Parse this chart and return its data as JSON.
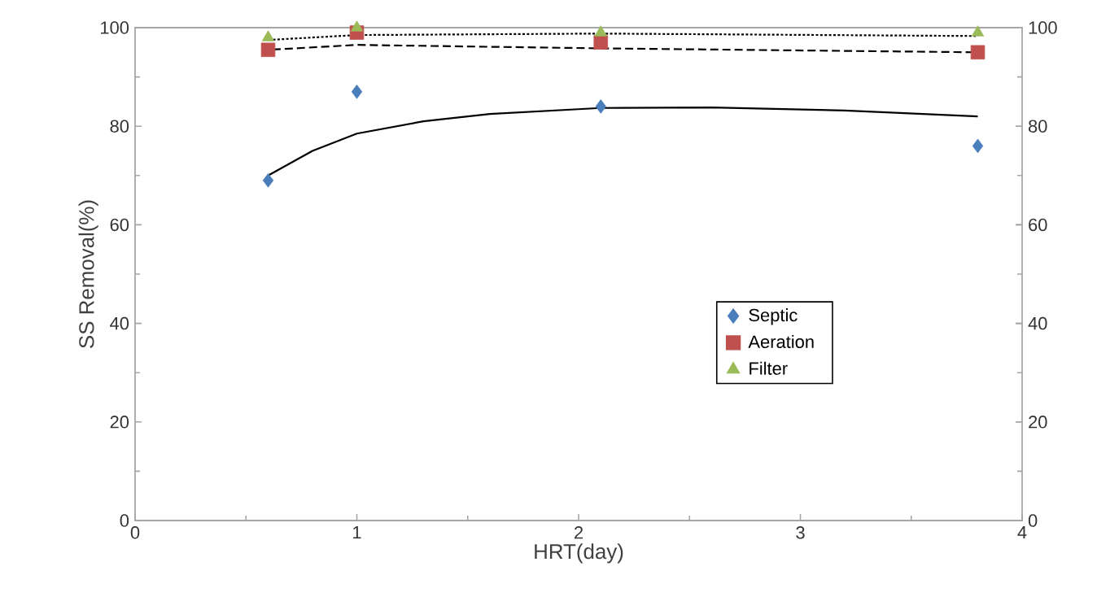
{
  "chart_data": {
    "type": "scatter",
    "xlabel": "HRT(day)",
    "ylabel": "SS Removal(%)",
    "xlim": [
      0,
      4
    ],
    "xticks": [
      0,
      1,
      2,
      3,
      4
    ],
    "ylim": [
      0,
      100
    ],
    "yticks": [
      0,
      20,
      40,
      60,
      80,
      100
    ],
    "y2lim": [
      0,
      100
    ],
    "y2ticks": [
      0,
      20,
      40,
      60,
      80,
      100
    ],
    "grid": false,
    "legend": "right",
    "series": [
      {
        "name": "Septic",
        "color": "#4a7ebb",
        "marker": "diamond",
        "x": [
          0.6,
          1.0,
          2.1,
          3.8
        ],
        "values": [
          69,
          87,
          84,
          76
        ]
      },
      {
        "name": "Aeration",
        "color": "#c0504d",
        "marker": "square",
        "x": [
          0.6,
          1.0,
          2.1,
          3.8
        ],
        "values": [
          95.5,
          99,
          97,
          95
        ]
      },
      {
        "name": "Filter",
        "color": "#9bbb59",
        "marker": "triangle",
        "x": [
          0.6,
          1.0,
          2.1,
          3.8
        ],
        "values": [
          98,
          100,
          99,
          99
        ]
      },
      {
        "type": "line",
        "color": "#000000",
        "line_style": "solid",
        "marker": "none",
        "x": [
          0.6,
          0.8,
          1.0,
          1.3,
          1.6,
          2.1,
          2.6,
          3.2,
          3.8
        ],
        "values": [
          70,
          75,
          78.5,
          81,
          82.5,
          83.7,
          83.8,
          83.2,
          82
        ]
      },
      {
        "type": "line",
        "color": "#000000",
        "line_style": "dashed",
        "marker": "none",
        "x": [
          0.6,
          1.0,
          2.1,
          3.8
        ],
        "values": [
          95.5,
          96.5,
          95.8,
          95
        ]
      },
      {
        "type": "line",
        "color": "#000000",
        "line_style": "dotted",
        "marker": "none",
        "x": [
          0.6,
          1.0,
          2.1,
          3.8
        ],
        "values": [
          97.5,
          98.5,
          98.8,
          98.3
        ]
      }
    ]
  }
}
